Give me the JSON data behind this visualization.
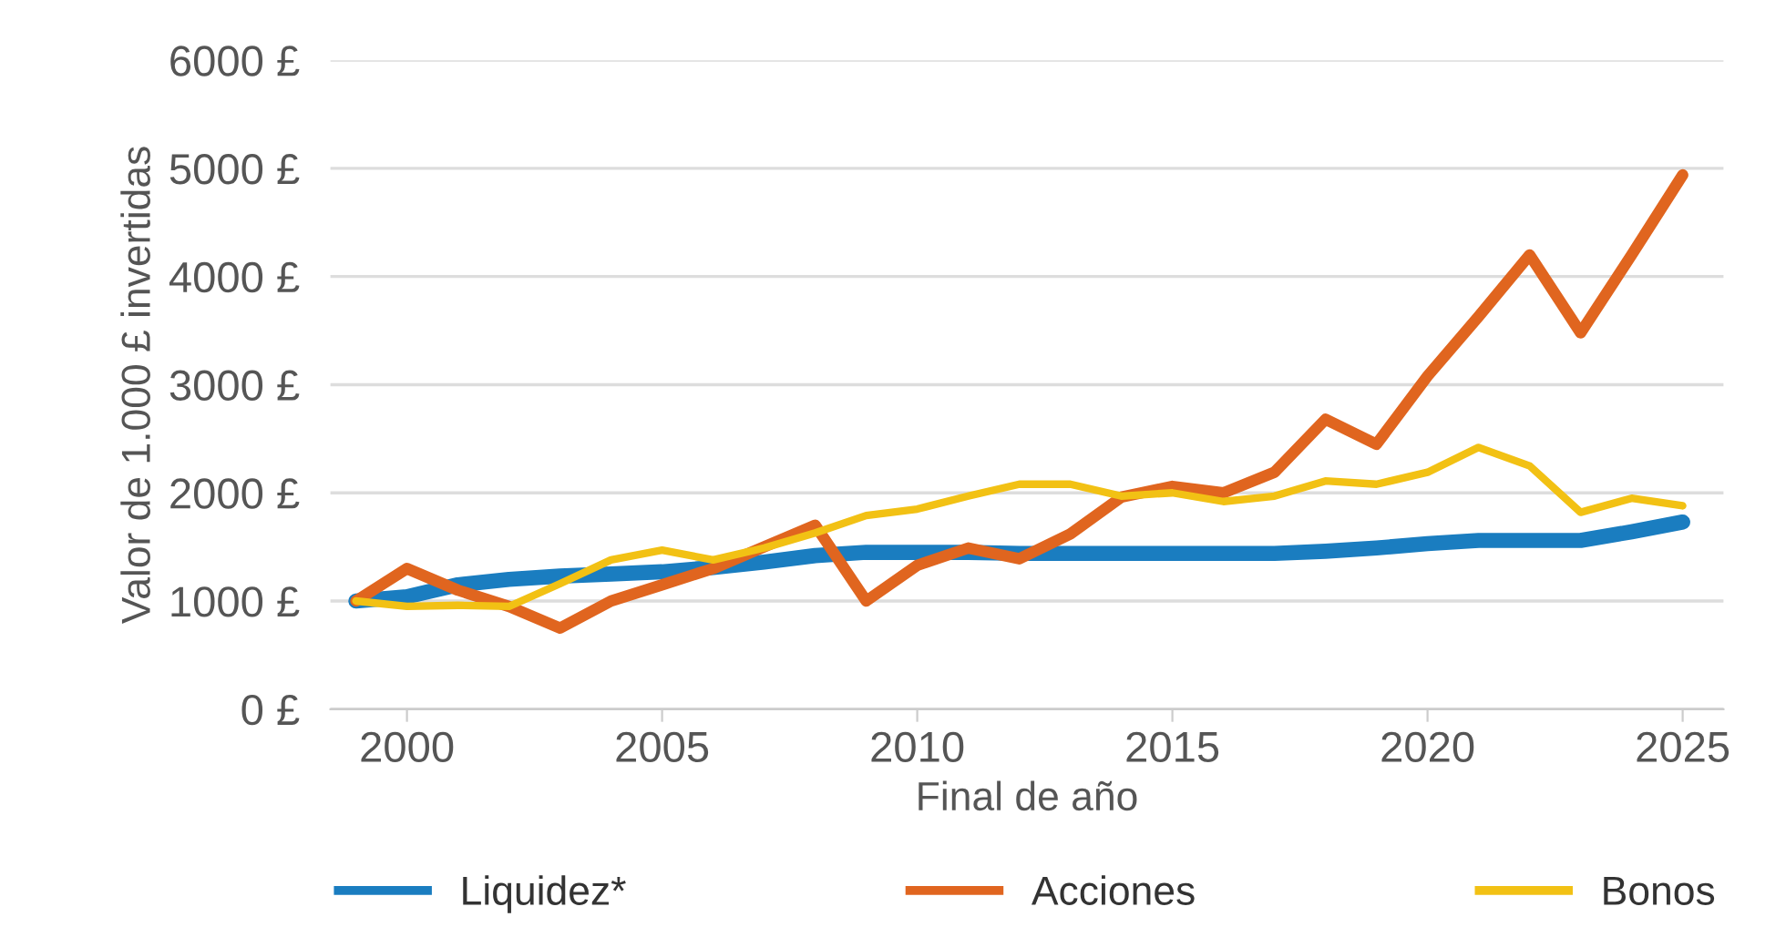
{
  "chart_data": {
    "type": "line",
    "xlabel": "Final de año",
    "ylabel": "Valor de 1.000 £ invertidas",
    "x": [
      1999,
      2000,
      2001,
      2002,
      2003,
      2004,
      2005,
      2006,
      2007,
      2008,
      2009,
      2010,
      2011,
      2012,
      2013,
      2014,
      2015,
      2016,
      2017,
      2018,
      2019,
      2020,
      2021,
      2022,
      2023,
      2024,
      2025
    ],
    "series": [
      {
        "name": "Liquidez*",
        "color": "#1a7dc0",
        "values": [
          1000,
          1040,
          1150,
          1200,
          1230,
          1250,
          1270,
          1310,
          1360,
          1420,
          1450,
          1450,
          1450,
          1440,
          1440,
          1440,
          1440,
          1440,
          1440,
          1460,
          1490,
          1530,
          1560,
          1560,
          1560,
          1640,
          1730
        ]
      },
      {
        "name": "Acciones",
        "color": "#e0651f",
        "values": [
          1000,
          1300,
          1100,
          950,
          750,
          1000,
          1150,
          1300,
          1500,
          1700,
          1000,
          1330,
          1490,
          1390,
          1620,
          1960,
          2060,
          2000,
          2190,
          2680,
          2450,
          3080,
          3630,
          4200,
          3480,
          4200,
          4940
        ]
      },
      {
        "name": "Bonos",
        "color": "#f2c114",
        "values": [
          1000,
          950,
          960,
          950,
          1160,
          1380,
          1470,
          1380,
          1490,
          1630,
          1790,
          1850,
          1970,
          2080,
          2080,
          1970,
          2000,
          1920,
          1970,
          2110,
          2080,
          2190,
          2420,
          2250,
          1820,
          1950,
          1880
        ]
      }
    ],
    "xlim": [
      1998.5,
      2025.8
    ],
    "xticks": [
      2000,
      2005,
      2010,
      2015,
      2020,
      2025
    ],
    "ylim": [
      0,
      6000
    ],
    "yticks": [
      {
        "value": 0,
        "label": "0 £"
      },
      {
        "value": 1000,
        "label": "1000 £"
      },
      {
        "value": 2000,
        "label": "2000 £"
      },
      {
        "value": 3000,
        "label": "3000 £"
      },
      {
        "value": 4000,
        "label": "4000 £"
      },
      {
        "value": 5000,
        "label": "5000 £"
      },
      {
        "value": 6000,
        "label": "6000 £"
      }
    ],
    "grid": "y",
    "legend": "bottom",
    "line_style": "solid",
    "marker": "none"
  }
}
